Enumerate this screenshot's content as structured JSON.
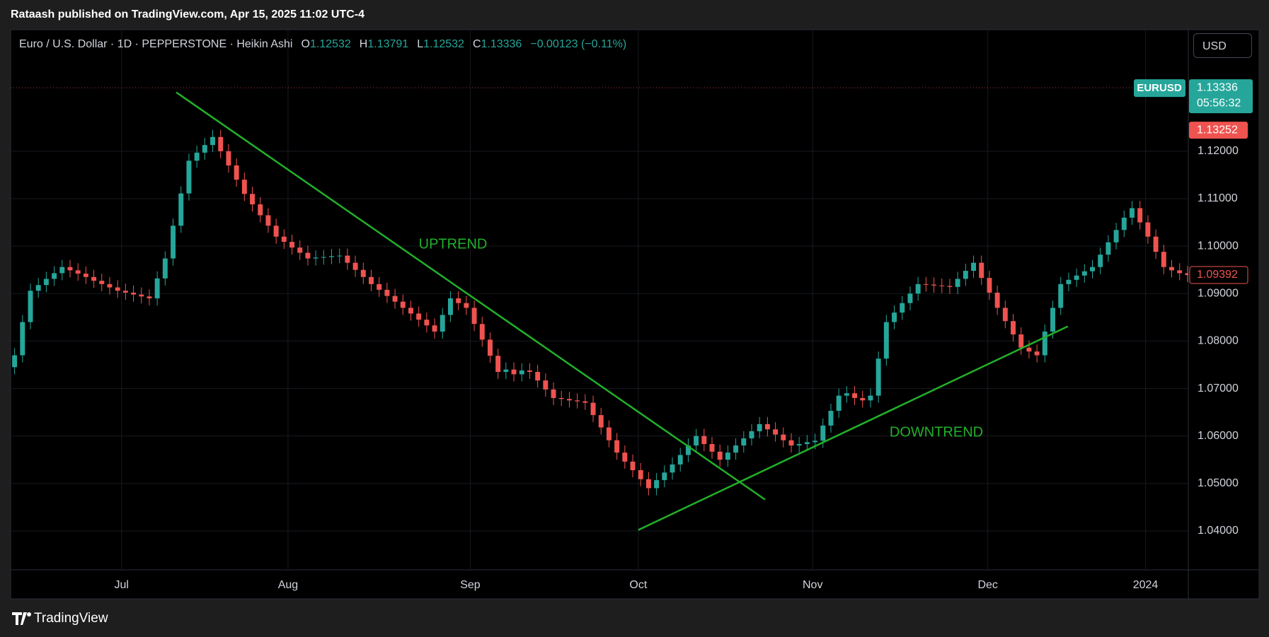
{
  "published": "Rataash published on TradingView.com, Apr 15, 2025 11:02 UTC-4",
  "currency_button": "USD",
  "brand": "TradingView",
  "chart_data": {
    "type": "candlestick",
    "title": "Euro / U.S. Dollar · 1D · PEPPERSTONE · Heikin Ashi",
    "ohlc": [
      {
        "label": "O",
        "value": 1.12532
      },
      {
        "label": "H",
        "value": 1.13791
      },
      {
        "label": "L",
        "value": 1.12532
      },
      {
        "label": "C",
        "value": 1.13336
      }
    ],
    "change": "−0.00123 (−0.11%)",
    "up_color": "#26a69a",
    "down_color": "#ef5350",
    "open": [
      1.0745,
      1.077,
      1.084,
      1.0906,
      1.0918,
      1.0931,
      1.0943,
      1.0956,
      1.0949,
      1.0942,
      1.0935,
      1.0927,
      1.092,
      1.0913,
      1.0906,
      1.0902,
      1.0898,
      1.0894,
      1.089,
      1.0932,
      1.0974,
      1.1043,
      1.1111,
      1.118,
      1.1197,
      1.1213,
      1.123,
      1.12,
      1.117,
      1.114,
      1.111,
      1.1088,
      1.1065,
      1.1043,
      1.102,
      1.1009,
      1.0997,
      1.0986,
      1.0974,
      1.0976,
      1.0977,
      1.0979,
      1.098,
      1.0965,
      1.095,
      1.0935,
      1.092,
      1.0908,
      1.0895,
      1.0883,
      1.087,
      1.0858,
      1.0845,
      1.0833,
      1.082,
      1.0855,
      1.089,
      1.088,
      1.087,
      1.0836,
      1.0803,
      1.0769,
      1.0735,
      1.074,
      1.073,
      1.0738,
      1.0735,
      1.0717,
      1.0698,
      1.068,
      1.0678,
      1.0675,
      1.0673,
      1.067,
      1.0644,
      1.0618,
      1.0591,
      1.0565,
      1.0546,
      1.0528,
      1.0509,
      1.049,
      1.0507,
      1.0523,
      1.054,
      1.056,
      1.058,
      1.06,
      1.0583,
      1.0567,
      1.055,
      1.0565,
      1.058,
      1.0595,
      1.061,
      1.0625,
      1.0614,
      1.0603,
      1.0591,
      1.058,
      1.0583,
      1.0587,
      1.059,
      1.0622,
      1.0653,
      1.0685,
      1.069,
      1.068,
      1.0675,
      1.0685,
      1.0763,
      1.084,
      1.086,
      1.088,
      1.09,
      1.092,
      1.0919,
      1.0917,
      1.0916,
      1.0914,
      1.0931,
      1.0948,
      1.0965,
      1.0933,
      1.0902,
      1.087,
      1.0842,
      1.0814,
      1.0786,
      1.0778,
      1.077,
      1.082,
      1.087,
      1.092,
      1.0929,
      1.0938,
      1.0947,
      1.0956,
      1.0982,
      1.1008,
      1.1034,
      1.106,
      1.108,
      1.105,
      1.102,
      1.0988,
      1.0956,
      1.0949,
      1.0943
    ],
    "high": [
      1.0785,
      1.0855,
      1.0921,
      1.0933,
      1.0946,
      1.0958,
      1.0971,
      1.0971,
      1.0964,
      1.0957,
      1.095,
      1.0942,
      1.0935,
      1.0928,
      1.0921,
      1.0917,
      1.0913,
      1.0909,
      1.0947,
      1.0989,
      1.1058,
      1.1126,
      1.1195,
      1.1212,
      1.1228,
      1.1245,
      1.1245,
      1.1215,
      1.1185,
      1.1155,
      1.1125,
      1.1103,
      1.108,
      1.1058,
      1.1035,
      1.1024,
      1.1012,
      1.1001,
      1.0991,
      1.0992,
      1.0994,
      1.0995,
      1.0995,
      1.098,
      1.0965,
      1.095,
      1.0935,
      1.0923,
      1.091,
      1.0898,
      1.0885,
      1.0873,
      1.086,
      1.0848,
      1.087,
      1.0905,
      1.0905,
      1.0895,
      1.0885,
      1.0851,
      1.0818,
      1.0784,
      1.0755,
      1.0755,
      1.0753,
      1.0753,
      1.075,
      1.0732,
      1.0713,
      1.0695,
      1.0693,
      1.069,
      1.0688,
      1.0685,
      1.0659,
      1.0633,
      1.0606,
      1.058,
      1.0561,
      1.0543,
      1.0524,
      1.0522,
      1.0538,
      1.0555,
      1.0575,
      1.0595,
      1.0615,
      1.0615,
      1.0598,
      1.0582,
      1.058,
      1.0595,
      1.061,
      1.0625,
      1.064,
      1.064,
      1.0629,
      1.0618,
      1.0606,
      1.0598,
      1.0602,
      1.0605,
      1.0637,
      1.0668,
      1.07,
      1.0705,
      1.0705,
      1.0695,
      1.07,
      1.0778,
      1.0855,
      1.0875,
      1.0895,
      1.0915,
      1.0935,
      1.0935,
      1.0934,
      1.0932,
      1.0931,
      1.0946,
      1.0963,
      1.098,
      1.098,
      1.0948,
      1.0917,
      1.0885,
      1.0857,
      1.0829,
      1.0801,
      1.0793,
      1.0835,
      1.0885,
      1.0935,
      1.0944,
      1.0953,
      1.0962,
      1.0971,
      1.0997,
      1.1023,
      1.1049,
      1.1075,
      1.1095,
      1.1095,
      1.1065,
      1.1035,
      1.1003,
      1.0971,
      1.0964,
      1.0958
    ],
    "low": [
      1.073,
      1.0755,
      1.0825,
      1.0891,
      1.0903,
      1.0916,
      1.0928,
      1.0934,
      1.0927,
      1.092,
      1.0912,
      1.0905,
      1.0898,
      1.0891,
      1.0887,
      1.0883,
      1.0879,
      1.0875,
      1.0875,
      1.0917,
      1.0959,
      1.1028,
      1.1096,
      1.1165,
      1.1182,
      1.1198,
      1.1185,
      1.1155,
      1.1125,
      1.1095,
      1.1073,
      1.105,
      1.1028,
      1.1005,
      1.0994,
      1.0982,
      1.0971,
      1.0959,
      1.0959,
      1.0961,
      1.0962,
      1.0964,
      1.095,
      1.0935,
      1.092,
      1.0905,
      1.0893,
      1.088,
      1.0868,
      1.0855,
      1.0843,
      1.083,
      1.0818,
      1.0805,
      1.0805,
      1.084,
      1.0865,
      1.0855,
      1.0821,
      1.0788,
      1.0754,
      1.072,
      1.072,
      1.0715,
      1.0715,
      1.072,
      1.0702,
      1.0683,
      1.0665,
      1.0663,
      1.066,
      1.0658,
      1.0655,
      1.0629,
      1.0603,
      1.0576,
      1.055,
      1.0531,
      1.0513,
      1.0494,
      1.0475,
      1.0475,
      1.0492,
      1.0508,
      1.0525,
      1.0545,
      1.0565,
      1.0568,
      1.0552,
      1.0535,
      1.0535,
      1.055,
      1.0565,
      1.058,
      1.0595,
      1.0599,
      1.0588,
      1.0576,
      1.0565,
      1.0565,
      1.0568,
      1.0572,
      1.0575,
      1.0607,
      1.0638,
      1.067,
      1.0665,
      1.066,
      1.066,
      1.067,
      1.0748,
      1.0825,
      1.0845,
      1.0865,
      1.0885,
      1.0904,
      1.0902,
      1.0901,
      1.0899,
      1.0899,
      1.0916,
      1.0933,
      1.0918,
      1.0887,
      1.0855,
      1.0827,
      1.0799,
      1.0771,
      1.0763,
      1.0755,
      1.0755,
      1.0805,
      1.0855,
      1.0905,
      1.0914,
      1.0923,
      1.0932,
      1.0941,
      1.0967,
      1.0993,
      1.1019,
      1.1045,
      1.1035,
      1.1005,
      1.0973,
      1.0941,
      1.0934,
      1.0928,
      1.0924
    ],
    "close": [
      1.077,
      1.084,
      1.0906,
      1.0918,
      1.0931,
      1.0943,
      1.0956,
      1.0949,
      1.0942,
      1.0935,
      1.0927,
      1.092,
      1.0913,
      1.0906,
      1.0902,
      1.0898,
      1.0894,
      1.089,
      1.0932,
      1.0974,
      1.1043,
      1.1111,
      1.118,
      1.1197,
      1.1213,
      1.123,
      1.12,
      1.117,
      1.114,
      1.111,
      1.1088,
      1.1065,
      1.1043,
      1.102,
      1.1009,
      1.0997,
      1.0986,
      1.0974,
      1.0976,
      1.0977,
      1.0979,
      1.098,
      1.0965,
      1.095,
      1.0935,
      1.092,
      1.0908,
      1.0895,
      1.0883,
      1.087,
      1.0858,
      1.0845,
      1.0833,
      1.082,
      1.0855,
      1.089,
      1.088,
      1.087,
      1.0836,
      1.0803,
      1.0769,
      1.0735,
      1.074,
      1.073,
      1.0738,
      1.0735,
      1.0717,
      1.0698,
      1.068,
      1.0678,
      1.0675,
      1.0673,
      1.067,
      1.0644,
      1.0618,
      1.0591,
      1.0565,
      1.0546,
      1.0528,
      1.0509,
      1.049,
      1.0507,
      1.0523,
      1.054,
      1.056,
      1.058,
      1.06,
      1.0583,
      1.0567,
      1.055,
      1.0565,
      1.058,
      1.0595,
      1.061,
      1.0625,
      1.0614,
      1.0603,
      1.0591,
      1.058,
      1.0583,
      1.0587,
      1.059,
      1.0622,
      1.0653,
      1.0685,
      1.069,
      1.068,
      1.0675,
      1.0685,
      1.0763,
      1.084,
      1.086,
      1.088,
      1.09,
      1.092,
      1.0919,
      1.0917,
      1.0916,
      1.0914,
      1.0931,
      1.0948,
      1.0965,
      1.0933,
      1.0902,
      1.087,
      1.0842,
      1.0814,
      1.0786,
      1.0778,
      1.077,
      1.082,
      1.087,
      1.092,
      1.0929,
      1.0938,
      1.0947,
      1.0956,
      1.0982,
      1.1008,
      1.1034,
      1.106,
      1.108,
      1.105,
      1.102,
      1.0988,
      1.0956,
      1.0949,
      1.0943,
      1.0939
    ],
    "xlim": [
      -0.5,
      148.1
    ],
    "xticks": [
      {
        "value": 13.5,
        "label": "Jul"
      },
      {
        "value": 34.5,
        "label": "Aug"
      },
      {
        "value": 57.5,
        "label": "Sep"
      },
      {
        "value": 78.7,
        "label": "Oct"
      },
      {
        "value": 100.7,
        "label": "Nov"
      },
      {
        "value": 122.8,
        "label": "Dec"
      },
      {
        "value": 142.7,
        "label": "2024"
      }
    ],
    "ylim": [
      1.0318,
      1.1456
    ],
    "yticks": [
      {
        "value": 1.04,
        "label": "1.04000"
      },
      {
        "value": 1.05,
        "label": "1.05000"
      },
      {
        "value": 1.06,
        "label": "1.06000"
      },
      {
        "value": 1.07,
        "label": "1.07000"
      },
      {
        "value": 1.08,
        "label": "1.08000"
      },
      {
        "value": 1.09,
        "label": "1.09000"
      },
      {
        "value": 1.1,
        "label": "1.10000"
      },
      {
        "value": 1.11,
        "label": "1.11000"
      },
      {
        "value": 1.12,
        "label": "1.12000"
      }
    ],
    "grid": true,
    "last_price": {
      "symbol": "EURUSD",
      "value": 1.13336,
      "countdown": "05:56:32",
      "color": "#26a69a"
    },
    "bid_price": {
      "value": 1.13252,
      "color": "#ef5350"
    },
    "last_bar_close": {
      "value": 1.09392,
      "color": "#ef5350"
    },
    "trendlines": [
      {
        "x": [
          20.4,
          94.7
        ],
        "y": [
          1.1324,
          1.0466
        ],
        "color": "#22b02a"
      },
      {
        "x": [
          78.7,
          132.9
        ],
        "y": [
          1.0402,
          1.0831
        ],
        "color": "#22b02a"
      }
    ],
    "annotations": [
      {
        "text": "UPTREND",
        "color": "#22b02a"
      },
      {
        "text": "DOWNTREND",
        "color": "#22b02a"
      }
    ]
  }
}
